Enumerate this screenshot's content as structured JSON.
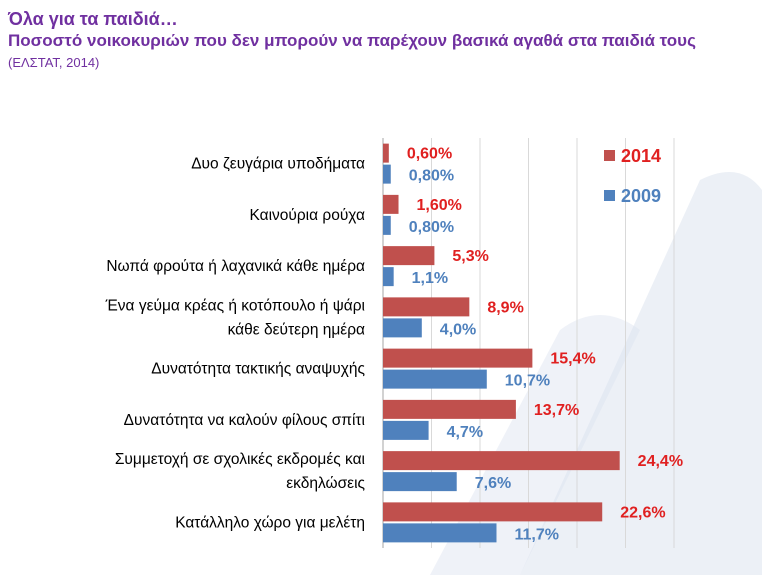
{
  "header": {
    "title": "Όλα για τα παιδιά…",
    "subtitle": "Ποσοστό νοικοκυριών που δεν μπορούν να παρέχουν βασικά αγαθά στα παιδιά τους",
    "source": "(ΕΛΣΤΑΤ, 2014)"
  },
  "colors": {
    "title": "#7030A0",
    "series_2014": "#C0504D",
    "series_2009": "#4F81BD",
    "label_2014": "#E02020",
    "label_2009": "#4F81BD",
    "watermark": "#DCE3EF"
  },
  "chart_data": {
    "type": "bar",
    "orientation": "horizontal",
    "categories": [
      [
        "Δυο ζευγάρια υποδήματα"
      ],
      [
        "Καινούρια ρούχα"
      ],
      [
        "Νωπά φρούτα ή λαχανικά κάθε ημέρα"
      ],
      [
        "Ένα γεύμα κρέας ή κοτόπουλο  ή ψάρι",
        "κάθε δεύτερη ημέρα"
      ],
      [
        "Δυνατότητα τακτικής αναψυχής"
      ],
      [
        "Δυνατότητα να καλούν φίλους σπίτι"
      ],
      [
        "Συμμετοχή σε σχολικές εκδρομές και",
        "εκδηλώσεις"
      ],
      [
        "Κατάλληλο χώρο για μελέτη"
      ]
    ],
    "series": [
      {
        "name": "2014",
        "values": [
          0.6,
          1.6,
          5.3,
          8.9,
          15.4,
          13.7,
          24.4,
          22.6
        ],
        "labels": [
          "0,60%",
          "1,60%",
          "5,3%",
          "8,9%",
          "15,4%",
          "13,7%",
          "24,4%",
          "22,6%"
        ]
      },
      {
        "name": "2009",
        "values": [
          0.8,
          0.8,
          1.1,
          4.0,
          10.7,
          4.7,
          7.6,
          11.7
        ],
        "labels": [
          "0,80%",
          "0,80%",
          "1,1%",
          "4,0%",
          "10,7%",
          "4,7%",
          "7,6%",
          "11,7%"
        ]
      }
    ],
    "xlim": [
      0,
      30
    ],
    "grid": true,
    "legend": "top-right"
  }
}
